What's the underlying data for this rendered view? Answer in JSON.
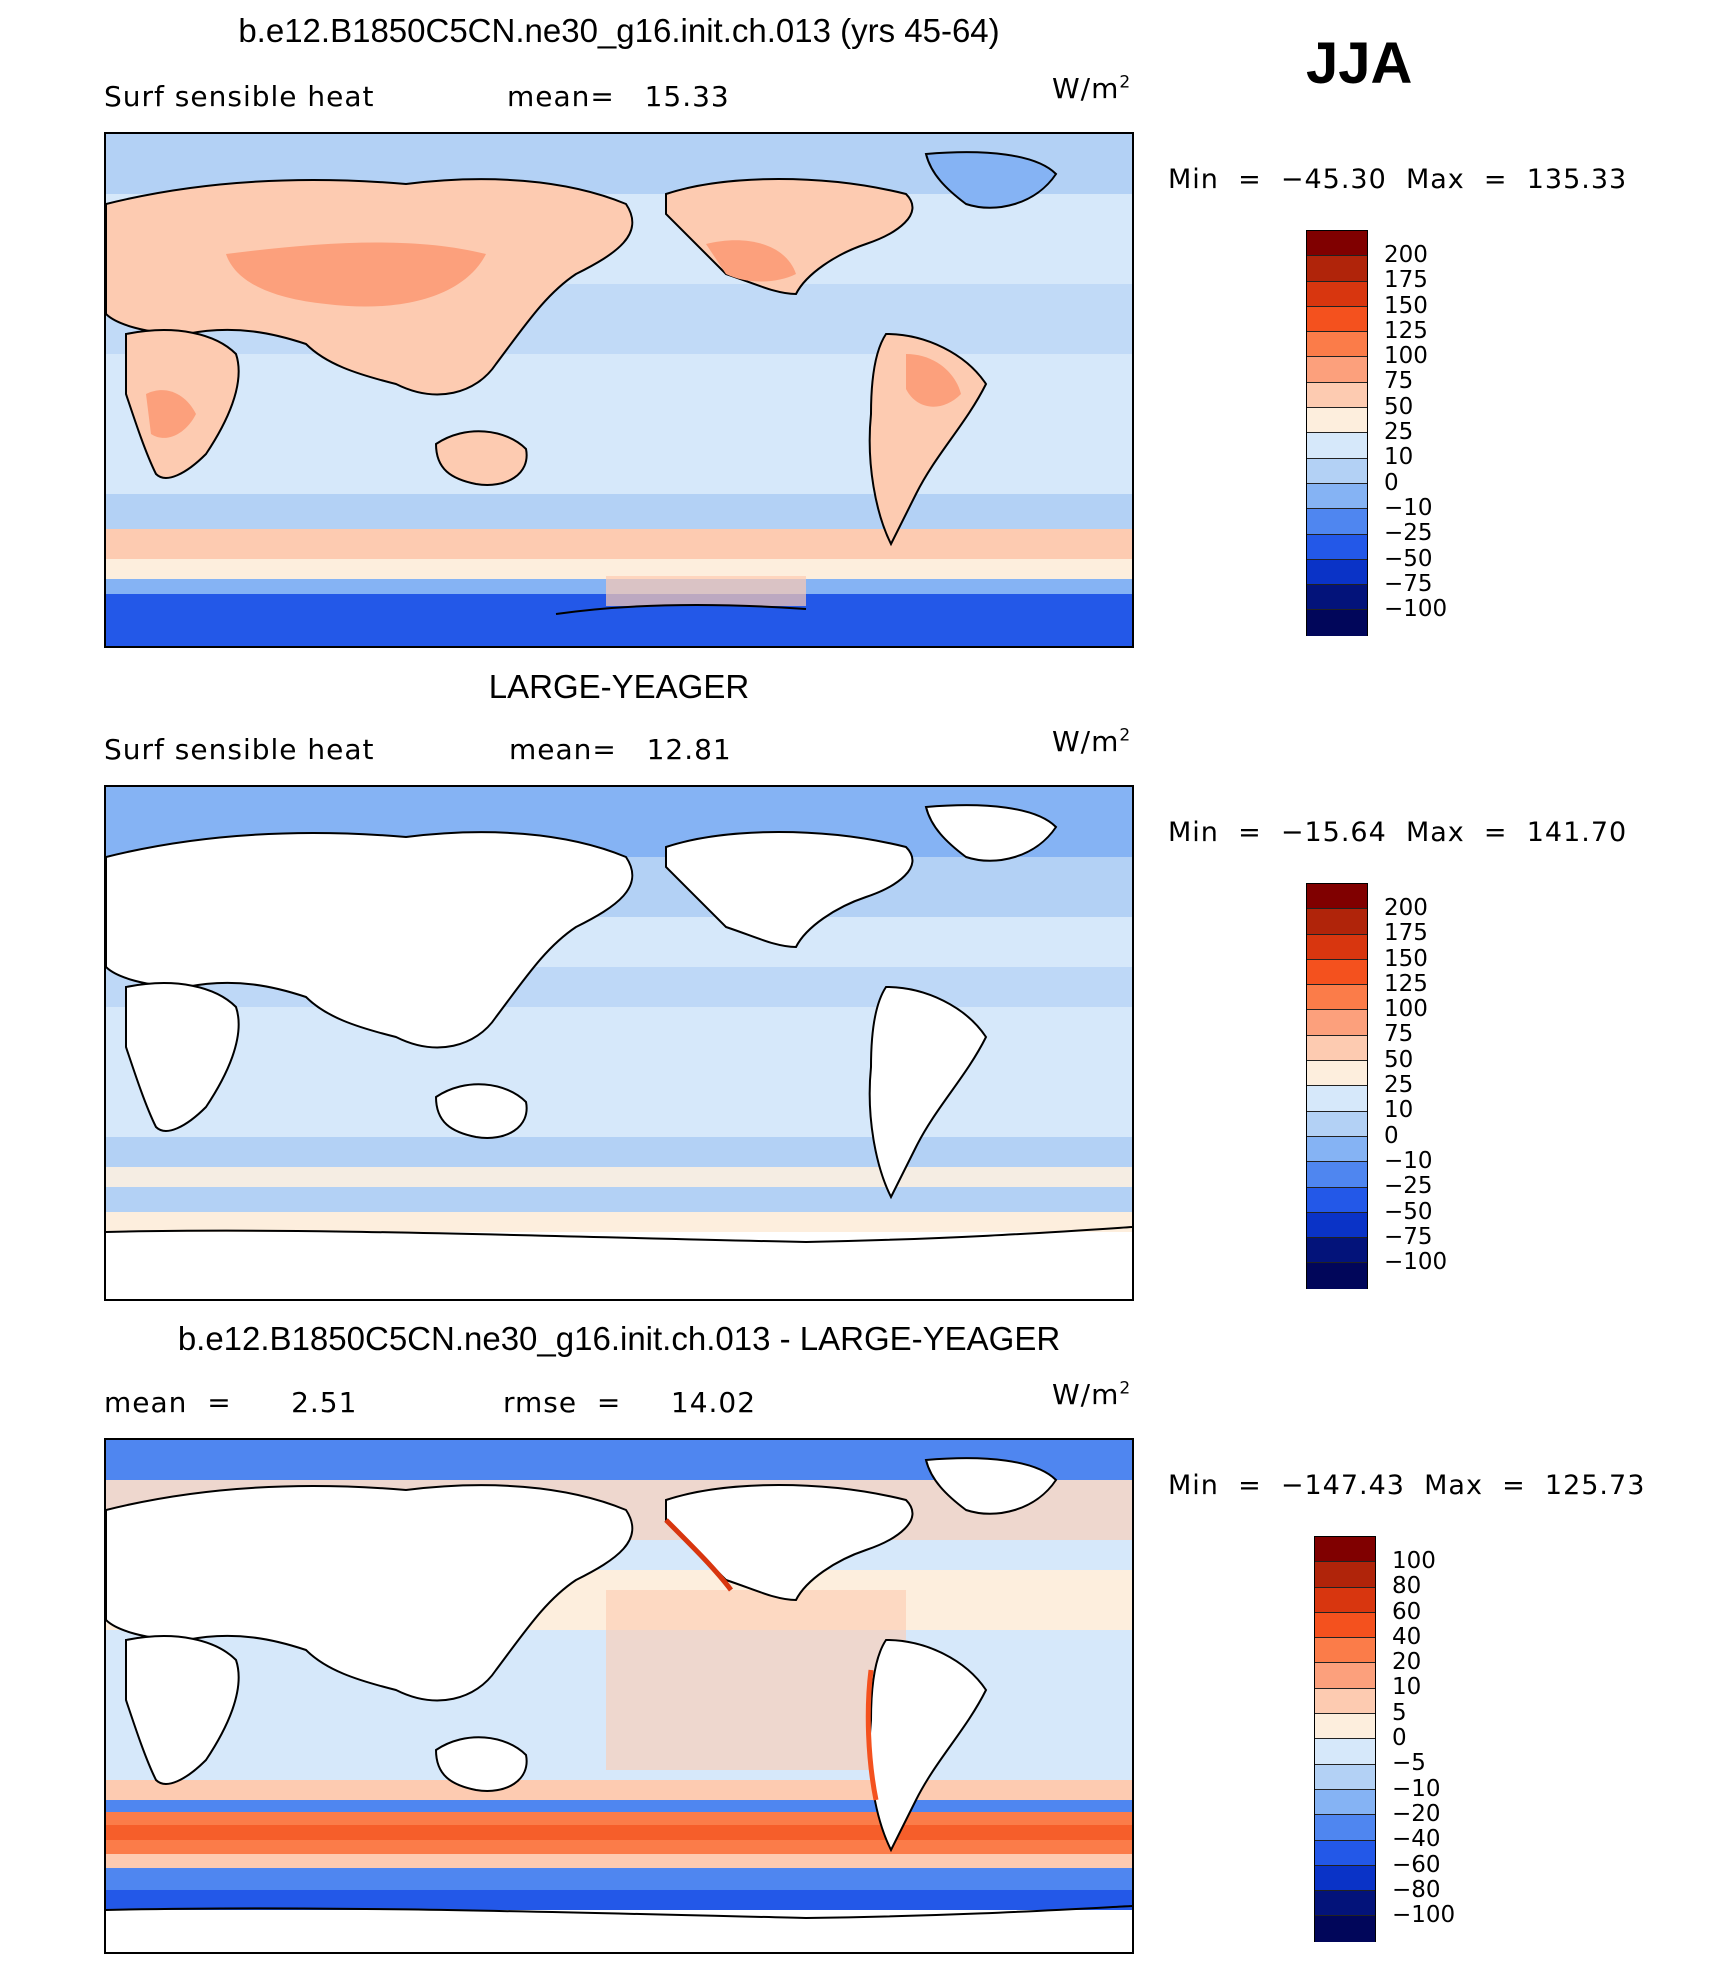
{
  "season": "JJA",
  "units_text": "W/m",
  "units_exp": "2",
  "panels": [
    {
      "title": "b.e12.B1850C5CN.ne30_g16.init.ch.013 (yrs 45-64)",
      "left_label": "Surf  sensible  heat",
      "right_label": "mean=   15.33",
      "minmax": "Min  =  −45.30  Max  =  135.33",
      "colorbar_labels": [
        "200",
        "175",
        "150",
        "125",
        "100",
        "75",
        "50",
        "25",
        "10",
        "0",
        "−10",
        "−25",
        "−50",
        "−75",
        "−100"
      ]
    },
    {
      "title": "LARGE-YEAGER",
      "left_label": "Surf  sensible  heat",
      "right_label": "mean=   12.81",
      "minmax": "Min  =  −15.64  Max  =  141.70",
      "colorbar_labels": [
        "200",
        "175",
        "150",
        "125",
        "100",
        "75",
        "50",
        "25",
        "10",
        "0",
        "−10",
        "−25",
        "−50",
        "−75",
        "−100"
      ]
    },
    {
      "title": "b.e12.B1850C5CN.ne30_g16.init.ch.013 - LARGE-YEAGER",
      "left_label": "mean  =      2.51",
      "right_label": "rmse  =     14.02",
      "minmax": "Min  =  −147.43  Max  =  125.73",
      "colorbar_labels": [
        "100",
        "80",
        "60",
        "40",
        "20",
        "10",
        "5",
        "0",
        "−5",
        "−10",
        "−20",
        "−40",
        "−60",
        "−80",
        "−100"
      ]
    }
  ],
  "colorbar_colors": [
    "#800000",
    "#b0240a",
    "#d8360f",
    "#f4511e",
    "#fb7c49",
    "#fca07c",
    "#fdcbb1",
    "#fdeedd",
    "#d6e8fa",
    "#b3d1f5",
    "#85b3f4",
    "#4f86f0",
    "#2358e8",
    "#0a33c7",
    "#03137a",
    "#01065a"
  ]
}
